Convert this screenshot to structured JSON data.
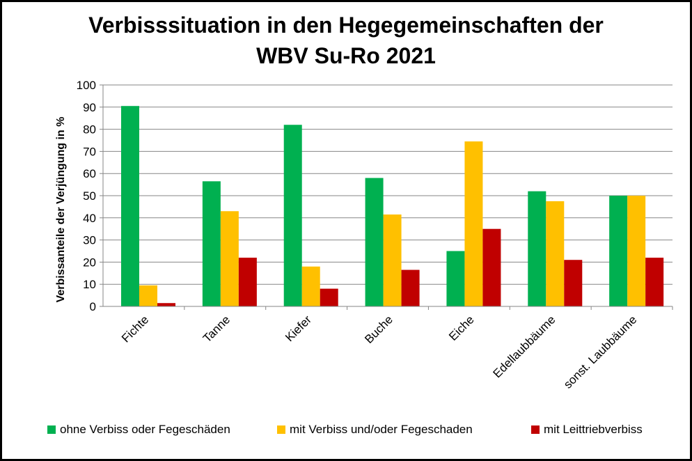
{
  "chart_data": {
    "type": "bar",
    "title_line1": "Verbisssituation in den Hegegemeinschaften der",
    "title_line2": "WBV Su-Ro 2021",
    "xlabel": "",
    "ylabel": "Verbissanteile der Verjüngung in  %",
    "ylim": [
      0,
      100
    ],
    "yticks": [
      0,
      10,
      20,
      30,
      40,
      50,
      60,
      70,
      80,
      90,
      100
    ],
    "grid": true,
    "legend_position": "bottom",
    "categories": [
      "Fichte",
      "Tanne",
      "Kiefer",
      "Buche",
      "Eiche",
      "Edellaubbäume",
      "sonst. Laubbäume"
    ],
    "series": [
      {
        "name": "ohne Verbiss oder Fegeschäden",
        "color": "#00B050",
        "values": [
          90.5,
          56.5,
          82,
          58,
          25,
          52,
          50
        ]
      },
      {
        "name": "mit Verbiss und/oder Fegeschaden",
        "color": "#FFC000",
        "values": [
          9.5,
          43,
          18,
          41.5,
          74.5,
          47.5,
          50
        ]
      },
      {
        "name": "mit Leittriebverbiss",
        "color": "#C00000",
        "values": [
          1.5,
          22,
          8,
          16.5,
          35,
          21,
          22
        ]
      }
    ]
  }
}
